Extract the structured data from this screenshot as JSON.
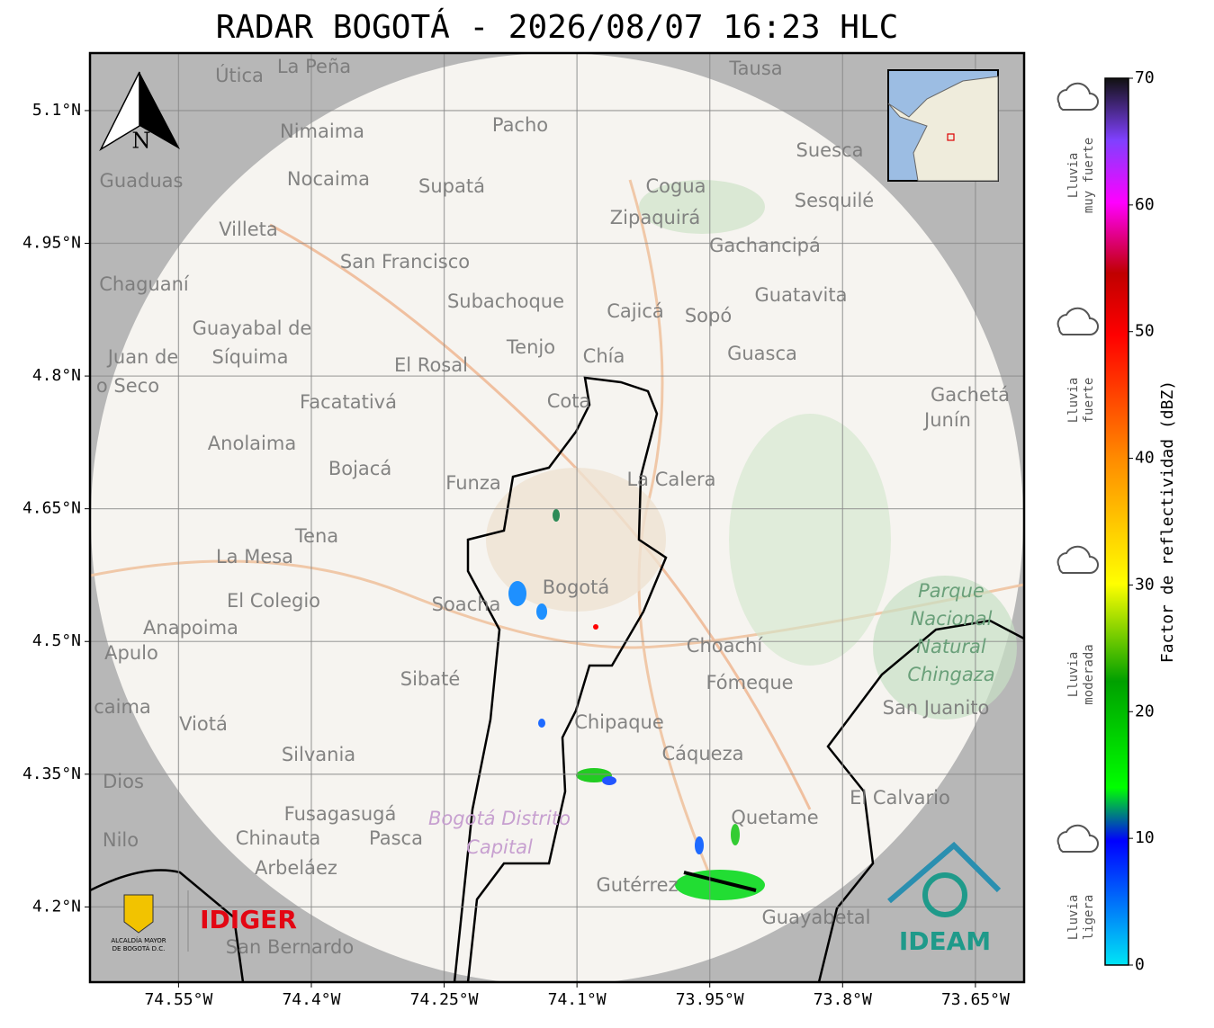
{
  "title": "RADAR BOGOTÁ - 2026/08/07 16:23 HLC",
  "north": "N",
  "lon_lim": [
    -74.65,
    -73.595
  ],
  "lat_lim": [
    5.165,
    4.115
  ],
  "lon_ticks": [
    {
      "value": -74.55,
      "label": "74.55°W"
    },
    {
      "value": -74.4,
      "label": "74.4°W"
    },
    {
      "value": -74.25,
      "label": "74.25°W"
    },
    {
      "value": -74.1,
      "label": "74.1°W"
    },
    {
      "value": -73.95,
      "label": "73.95°W"
    },
    {
      "value": -73.8,
      "label": "73.8°W"
    },
    {
      "value": -73.65,
      "label": "73.65°W"
    }
  ],
  "lat_ticks": [
    {
      "value": 5.1,
      "label": "5.1°N"
    },
    {
      "value": 4.95,
      "label": "4.95°N"
    },
    {
      "value": 4.8,
      "label": "4.8°N"
    },
    {
      "value": 4.65,
      "label": "4.65°N"
    },
    {
      "value": 4.5,
      "label": "4.5°N"
    },
    {
      "value": 4.35,
      "label": "4.35°N"
    },
    {
      "value": 4.2,
      "label": "4.2°N"
    }
  ],
  "colorbar": {
    "label": "Factor de reflectividad (dBZ)",
    "lim": [
      0,
      70
    ],
    "ticks": [
      0,
      10,
      20,
      30,
      40,
      50,
      60,
      70
    ]
  },
  "legend": [
    [
      "Lluvia",
      "muy fuerte"
    ],
    [
      "Lluvia",
      "fuerte"
    ],
    [
      "Lluvia",
      "moderada"
    ],
    [
      "Lluvia",
      "ligera"
    ]
  ],
  "places": [
    "Útica",
    "La Peña",
    "Tausa",
    "Pacho",
    "Nimaima",
    "Guaduas",
    "Nocaima",
    "Supatá",
    "Cogua",
    "Suesca",
    "Sesquilé",
    "Zipaquirá",
    "Villeta",
    "Gachancipá",
    "San Francisco",
    "Chaguaní",
    "Subachoque",
    "Guatavita",
    "Cajicá",
    "Sopó",
    "Guayabal de",
    "Síquima",
    "Tenjo",
    "Chía",
    "Guasca",
    "El Rosal",
    "Juan de",
    "o Seco",
    "Facatativá",
    "Cota",
    "Gachetá",
    "Junín",
    "Anolaima",
    "Bojacá",
    "Funza",
    "La Calera",
    "Tena",
    "La Mesa",
    "Bogotá",
    "El Colegio",
    "Soacha",
    "Anapoima",
    "Apulo",
    "Choachí",
    "Sibaté",
    "Fómeque",
    "San Juanito",
    "caima",
    "Viotá",
    "Chipaque",
    "Silvania",
    "Cáqueza",
    "Dios",
    "El Calvario",
    "Fusagasugá",
    "Quetame",
    "Nilo",
    "Chinauta",
    "Pasca",
    "Arbeláez",
    "Gutérrez",
    "Guayabetal",
    "San Bernardo"
  ],
  "park": [
    "Parque",
    "Nacional",
    "Natural",
    "Chingaza"
  ],
  "district": [
    "Bogotá Distrito",
    "Capital"
  ],
  "logos": {
    "alcaldia": [
      "ALCALDÍA MAYOR",
      "DE BOGOTÁ D.C."
    ],
    "idiger": "IDIGER",
    "ideam": "IDEAM"
  }
}
